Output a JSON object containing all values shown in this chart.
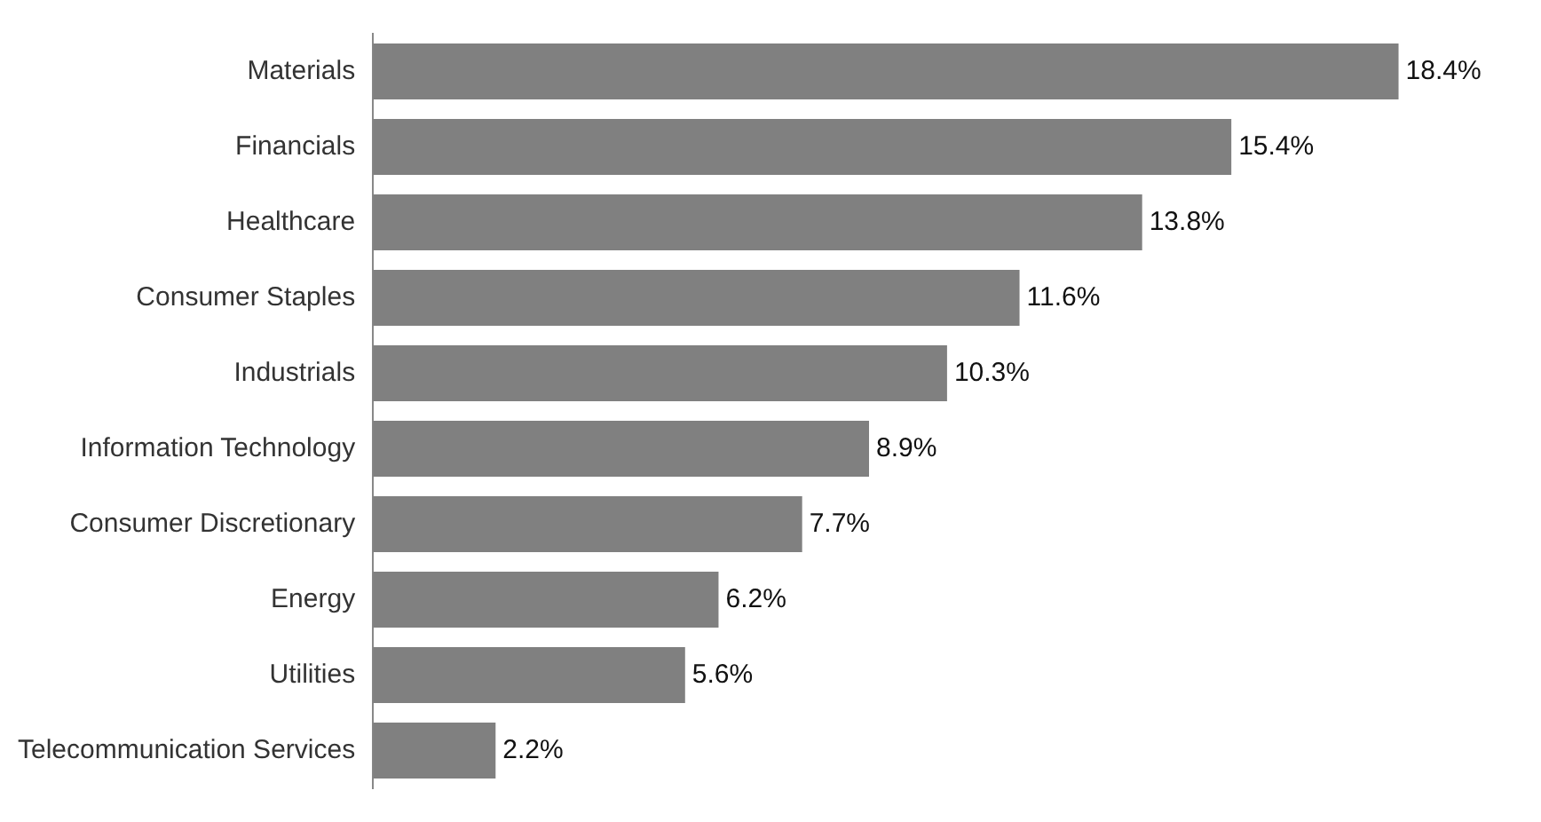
{
  "chart_data": {
    "type": "bar",
    "orientation": "horizontal",
    "categories": [
      "Materials",
      "Financials",
      "Healthcare",
      "Consumer Staples",
      "Industrials",
      "Information Technology",
      "Consumer Discretionary",
      "Energy",
      "Utilities",
      "Telecommunication Services"
    ],
    "values": [
      18.4,
      15.4,
      13.8,
      11.6,
      10.3,
      8.9,
      7.7,
      6.2,
      5.6,
      2.2
    ],
    "value_labels": [
      "18.4%",
      "15.4%",
      "13.8%",
      "11.6%",
      "10.3%",
      "8.9%",
      "7.7%",
      "6.2%",
      "5.6%",
      "2.2%"
    ],
    "color": "#808080",
    "legend": false
  }
}
